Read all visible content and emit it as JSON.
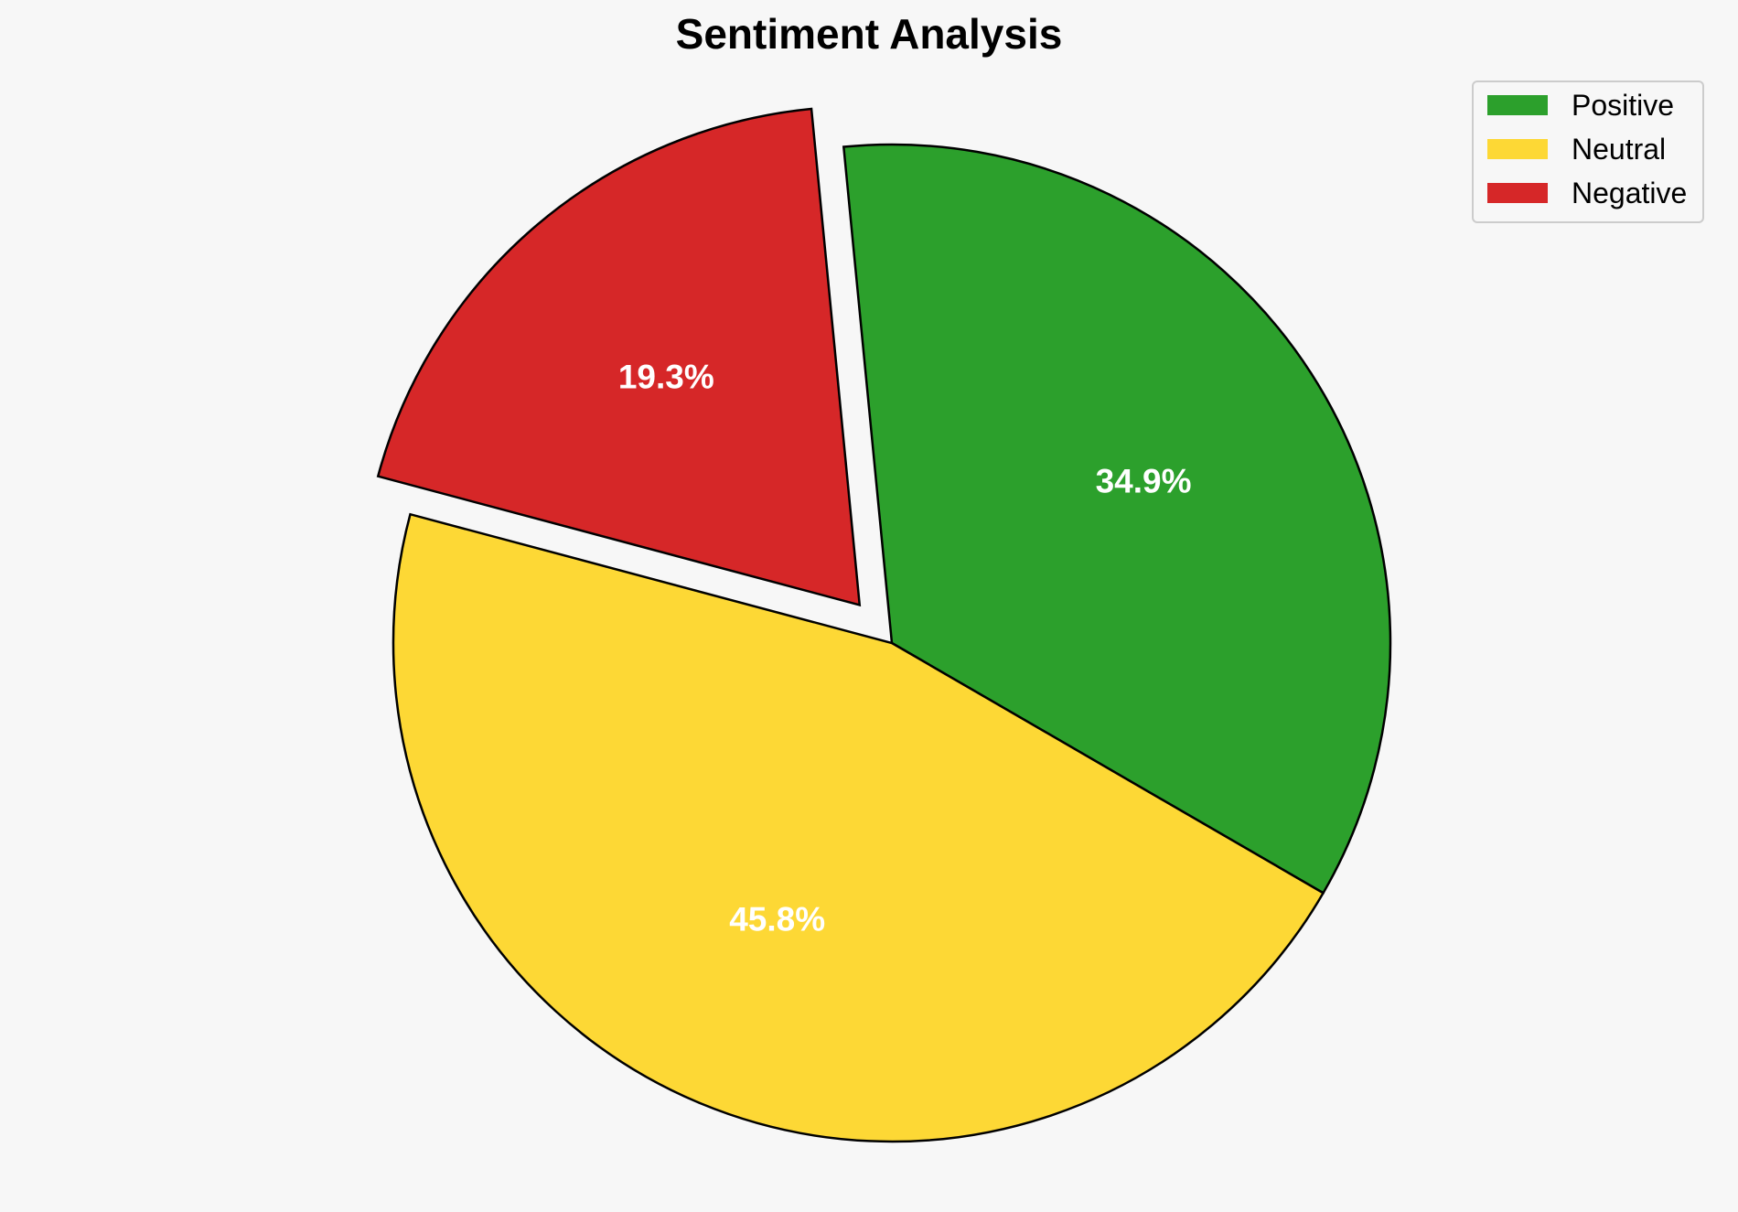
{
  "chart_data": {
    "type": "pie",
    "title": "Sentiment Analysis",
    "slices": [
      {
        "label": "Positive",
        "value": 34.9,
        "display": "34.9%",
        "color": "#2ca02c",
        "exploded": false
      },
      {
        "label": "Neutral",
        "value": 45.8,
        "display": "45.8%",
        "color": "#fdd835",
        "exploded": false
      },
      {
        "label": "Negative",
        "value": 19.3,
        "display": "19.3%",
        "color": "#d62728",
        "exploded": true
      }
    ],
    "legend_placement": "top-right",
    "slice_edge_color": "#000000",
    "label_color": "#ffffff"
  }
}
